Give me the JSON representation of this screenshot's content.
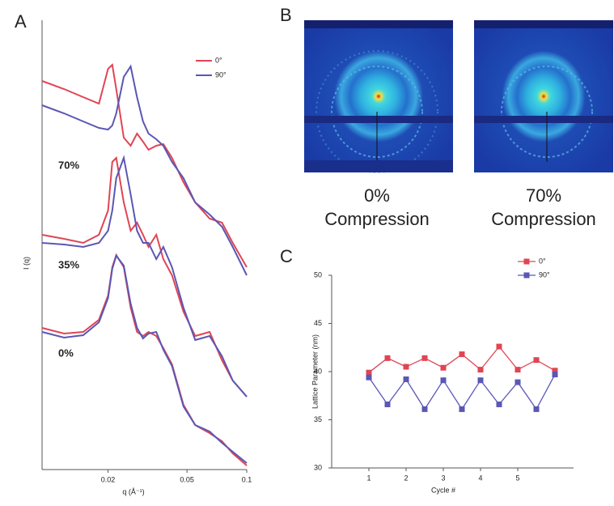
{
  "panel_labels": [
    "A",
    "B",
    "C"
  ],
  "images": [
    {
      "caption": [
        "0%",
        "Compression"
      ]
    },
    {
      "caption": [
        "70%",
        "Compression"
      ]
    }
  ],
  "chart_data": [
    {
      "type": "line",
      "xscale": "log",
      "xlabel": "q (Å⁻¹)",
      "ylabel": "I (q)",
      "x": [
        0.0093,
        0.012,
        0.015,
        0.018,
        0.02,
        0.021,
        0.022,
        0.024,
        0.026,
        0.028,
        0.03,
        0.032,
        0.035,
        0.038,
        0.042,
        0.048,
        0.055,
        0.065,
        0.075,
        0.085,
        0.1
      ],
      "xlim": [
        0.0093,
        0.1
      ],
      "xticks": [
        0.02,
        0.05,
        0.1
      ],
      "ylim": [
        0,
        555
      ],
      "legend": [
        {
          "name": "0°",
          "color": "#e04553"
        },
        {
          "name": "90°",
          "color": "#5a57b5"
        }
      ],
      "groups": [
        {
          "label": "70%",
          "series": [
            {
              "color": "#e04553",
              "values": [
                480,
                470,
                460,
                452,
                495,
                500,
                470,
                410,
                400,
                415,
                405,
                395,
                400,
                402,
                385,
                355,
                330,
                310,
                305,
                280,
                250
              ]
            },
            {
              "color": "#5a57b5",
              "values": [
                450,
                440,
                430,
                422,
                420,
                425,
                440,
                485,
                498,
                460,
                430,
                415,
                408,
                400,
                380,
                360,
                330,
                315,
                300,
                275,
                240
              ]
            }
          ]
        },
        {
          "label": "35%",
          "series": [
            {
              "color": "#e04553",
              "values": [
                290,
                285,
                280,
                290,
                320,
                380,
                385,
                330,
                295,
                305,
                290,
                275,
                290,
                260,
                240,
                195,
                165,
                170,
                135,
                110,
                90
              ]
            },
            {
              "color": "#5a57b5",
              "values": [
                280,
                278,
                275,
                280,
                295,
                320,
                360,
                385,
                340,
                295,
                280,
                280,
                260,
                275,
                250,
                200,
                160,
                165,
                140,
                110,
                90
              ]
            }
          ]
        },
        {
          "label": "0%",
          "series": [
            {
              "color": "#e04553",
              "values": [
                175,
                168,
                170,
                185,
                215,
                250,
                265,
                250,
                200,
                170,
                165,
                170,
                165,
                150,
                130,
                80,
                55,
                45,
                35,
                20,
                5
              ]
            },
            {
              "color": "#5a57b5",
              "values": [
                170,
                163,
                166,
                182,
                212,
                248,
                264,
                252,
                205,
                175,
                162,
                168,
                170,
                148,
                128,
                78,
                55,
                47,
                33,
                22,
                8
              ]
            }
          ]
        }
      ]
    },
    {
      "type": "line",
      "xlabel": "Cycle #",
      "ylabel": "Lattice Parameter (nm)",
      "x": [
        1,
        1.5,
        2,
        2.5,
        3,
        3.5,
        4,
        4.5,
        5,
        5.5,
        6
      ],
      "xlim": [
        0,
        6.5
      ],
      "xticks": [
        1,
        2,
        3,
        4,
        5
      ],
      "ylim": [
        30,
        50
      ],
      "yticks": [
        30,
        35,
        40,
        45,
        50
      ],
      "series": [
        {
          "name": "0°",
          "color": "#e04553",
          "values": [
            39.9,
            41.4,
            40.5,
            41.4,
            40.4,
            41.8,
            40.2,
            42.6,
            40.2,
            41.2,
            40.1
          ]
        },
        {
          "name": "90°",
          "color": "#5a57b5",
          "values": [
            39.4,
            36.6,
            39.2,
            36.1,
            39.1,
            36.1,
            39.1,
            36.6,
            38.9,
            36.1,
            39.7
          ]
        }
      ]
    }
  ]
}
